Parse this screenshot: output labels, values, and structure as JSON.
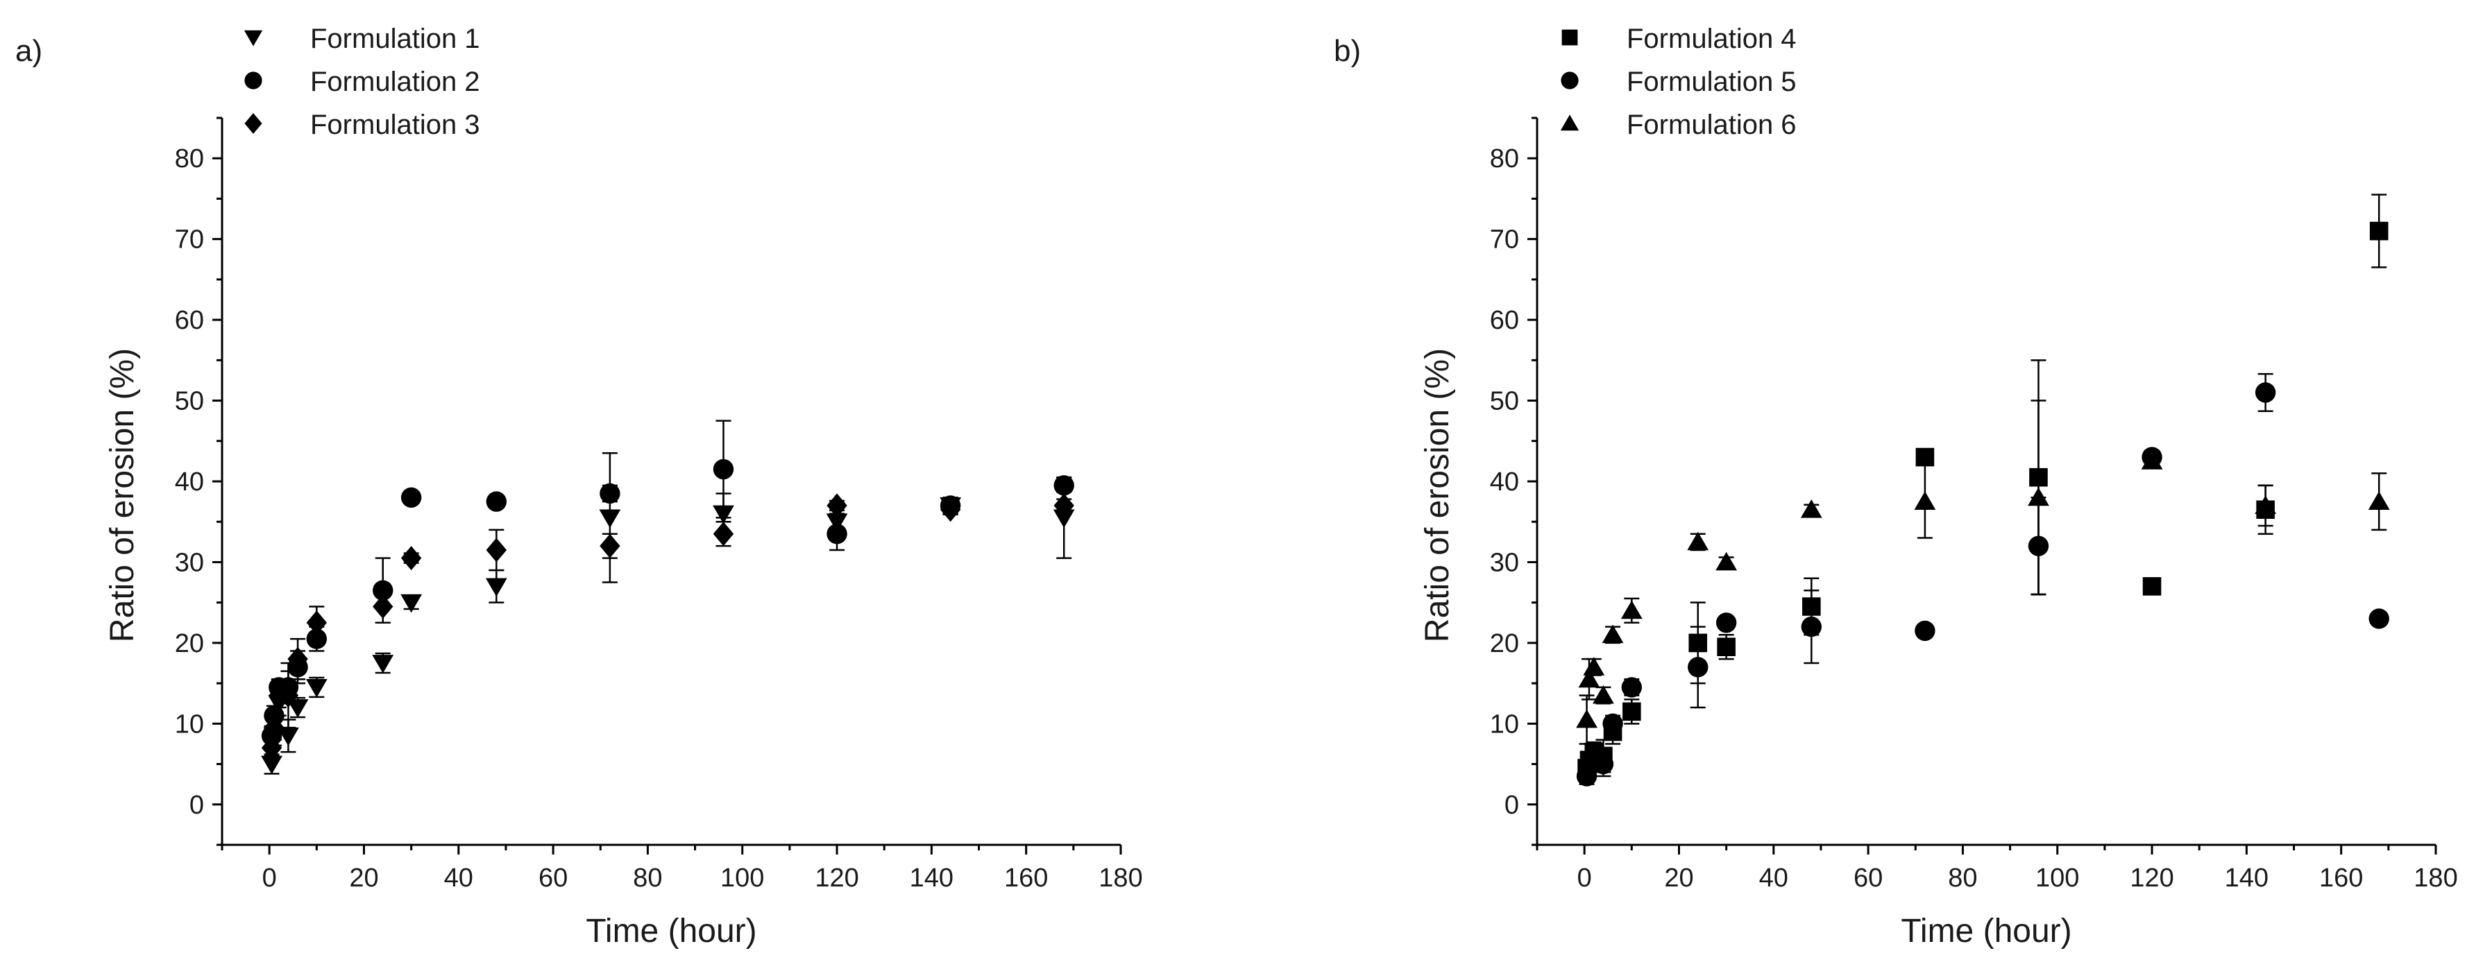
{
  "chart_data": [
    {
      "type": "scatter",
      "panel_label": "a)",
      "xlabel": "Time (hour)",
      "ylabel": "Ratio of erosion (%)",
      "xlim": [
        -10,
        180
      ],
      "ylim": [
        -5,
        85
      ],
      "xticks": [
        0,
        20,
        40,
        60,
        80,
        100,
        120,
        140,
        160,
        180
      ],
      "yticks": [
        0,
        10,
        20,
        30,
        40,
        50,
        60,
        70,
        80
      ],
      "legend_position": "top-left",
      "series": [
        {
          "name": "Formulation 1",
          "marker": "triangle-down",
          "points": [
            {
              "x": 0.5,
              "y": 5,
              "err": 1.2
            },
            {
              "x": 1,
              "y": 8.5,
              "err": 1.2
            },
            {
              "x": 2,
              "y": 12.5,
              "err": 1.5
            },
            {
              "x": 4,
              "y": 8.5,
              "err": 2
            },
            {
              "x": 6,
              "y": 12,
              "err": 1.2
            },
            {
              "x": 10,
              "y": 14.5,
              "err": 1.2
            },
            {
              "x": 24,
              "y": 17.5,
              "err": 1.2
            },
            {
              "x": 30,
              "y": 25,
              "err": 0.8
            },
            {
              "x": 48,
              "y": 27,
              "err": 2
            },
            {
              "x": 72,
              "y": 35.5,
              "err": 8
            },
            {
              "x": 96,
              "y": 36,
              "err": 2.5
            },
            {
              "x": 120,
              "y": 35,
              "err": 1
            },
            {
              "x": 144,
              "y": 37,
              "err": 1
            },
            {
              "x": 168,
              "y": 35.5,
              "err": 5
            }
          ]
        },
        {
          "name": "Formulation 2",
          "marker": "circle",
          "points": [
            {
              "x": 0.5,
              "y": 8.5,
              "err": 1.2
            },
            {
              "x": 1,
              "y": 11,
              "err": 1.2
            },
            {
              "x": 2,
              "y": 14.5,
              "err": 1
            },
            {
              "x": 4,
              "y": 14.5,
              "err": 2
            },
            {
              "x": 6,
              "y": 17,
              "err": 2
            },
            {
              "x": 10,
              "y": 20.5,
              "err": 1.5
            },
            {
              "x": 24,
              "y": 26.5,
              "err": 4
            },
            {
              "x": 30,
              "y": 38,
              "err": 0.6
            },
            {
              "x": 48,
              "y": 37.5,
              "err": 0.6
            },
            {
              "x": 72,
              "y": 38.5,
              "err": 1
            },
            {
              "x": 96,
              "y": 41.5,
              "err": 6
            },
            {
              "x": 120,
              "y": 33.5,
              "err": 2
            },
            {
              "x": 144,
              "y": 37,
              "err": 1
            },
            {
              "x": 168,
              "y": 39.5,
              "err": 0.8
            }
          ]
        },
        {
          "name": "Formulation 3",
          "marker": "diamond",
          "points": [
            {
              "x": 0.5,
              "y": 7,
              "err": 1
            },
            {
              "x": 1,
              "y": 9.5,
              "err": 1.5
            },
            {
              "x": 2,
              "y": 13.5,
              "err": 1.5
            },
            {
              "x": 4,
              "y": 13.5,
              "err": 4
            },
            {
              "x": 6,
              "y": 18,
              "err": 2.5
            },
            {
              "x": 10,
              "y": 22.5,
              "err": 2
            },
            {
              "x": 24,
              "y": 24.5,
              "err": 2
            },
            {
              "x": 30,
              "y": 30.5,
              "err": 0.6
            },
            {
              "x": 48,
              "y": 31.5,
              "err": 2.5
            },
            {
              "x": 72,
              "y": 32,
              "err": 1.5
            },
            {
              "x": 96,
              "y": 33.5,
              "err": 1.5
            },
            {
              "x": 120,
              "y": 37,
              "err": 0.6
            },
            {
              "x": 144,
              "y": 36.5,
              "err": 0.6
            },
            {
              "x": 168,
              "y": 37,
              "err": 0.8
            }
          ]
        }
      ]
    },
    {
      "type": "scatter",
      "panel_label": "b)",
      "xlabel": "Time (hour)",
      "ylabel": "Ratio of erosion (%)",
      "xlim": [
        -10,
        180
      ],
      "ylim": [
        -5,
        85
      ],
      "xticks": [
        0,
        20,
        40,
        60,
        80,
        100,
        120,
        140,
        160,
        180
      ],
      "yticks": [
        0,
        10,
        20,
        30,
        40,
        50,
        60,
        70,
        80
      ],
      "legend_position": "top-left",
      "series": [
        {
          "name": "Formulation 4",
          "marker": "square",
          "points": [
            {
              "x": 0.5,
              "y": 4.5,
              "err": 1
            },
            {
              "x": 1,
              "y": 5.5,
              "err": 1
            },
            {
              "x": 2,
              "y": 6.5,
              "err": 1.2
            },
            {
              "x": 4,
              "y": 6,
              "err": 2
            },
            {
              "x": 6,
              "y": 9,
              "err": 1.5
            },
            {
              "x": 10,
              "y": 11.5,
              "err": 1.5
            },
            {
              "x": 24,
              "y": 20,
              "err": 5
            },
            {
              "x": 30,
              "y": 19.5,
              "err": 1.5
            },
            {
              "x": 48,
              "y": 24.5,
              "err": 3.5
            },
            {
              "x": 72,
              "y": 43,
              "err": 0.8
            },
            {
              "x": 96,
              "y": 40.5,
              "err": 14.5
            },
            {
              "x": 120,
              "y": 27,
              "err": 0.6
            },
            {
              "x": 144,
              "y": 36.5,
              "err": 3
            },
            {
              "x": 168,
              "y": 71,
              "err": 4.5
            }
          ]
        },
        {
          "name": "Formulation 5",
          "marker": "circle",
          "points": [
            {
              "x": 0.5,
              "y": 3.5,
              "err": 1
            },
            {
              "x": 1,
              "y": 5,
              "err": 1
            },
            {
              "x": 2,
              "y": 5.5,
              "err": 1
            },
            {
              "x": 4,
              "y": 5,
              "err": 1.5
            },
            {
              "x": 6,
              "y": 10,
              "err": 1
            },
            {
              "x": 10,
              "y": 14.5,
              "err": 1
            },
            {
              "x": 24,
              "y": 17,
              "err": 5
            },
            {
              "x": 30,
              "y": 22.5,
              "err": 0.6
            },
            {
              "x": 48,
              "y": 22,
              "err": 4.5
            },
            {
              "x": 72,
              "y": 21.5,
              "err": 0.6
            },
            {
              "x": 96,
              "y": 32,
              "err": 6
            },
            {
              "x": 120,
              "y": 43,
              "err": 0.8
            },
            {
              "x": 144,
              "y": 51,
              "err": 2.3
            },
            {
              "x": 168,
              "y": 23,
              "err": 0.6
            }
          ]
        },
        {
          "name": "Formulation 6",
          "marker": "triangle-up",
          "points": [
            {
              "x": 0.5,
              "y": 10.5,
              "err": 3
            },
            {
              "x": 1,
              "y": 15.5,
              "err": 2.5
            },
            {
              "x": 2,
              "y": 17,
              "err": 1
            },
            {
              "x": 4,
              "y": 13.5,
              "err": 1
            },
            {
              "x": 6,
              "y": 21,
              "err": 1
            },
            {
              "x": 10,
              "y": 24,
              "err": 1.5
            },
            {
              "x": 24,
              "y": 32.5,
              "err": 1
            },
            {
              "x": 30,
              "y": 30,
              "err": 0.6
            },
            {
              "x": 48,
              "y": 36.5,
              "err": 0.6
            },
            {
              "x": 72,
              "y": 37.5,
              "err": 4.5
            },
            {
              "x": 96,
              "y": 38,
              "err": 12
            },
            {
              "x": 120,
              "y": 42.5,
              "err": 0.8
            },
            {
              "x": 144,
              "y": 37,
              "err": 2.5
            },
            {
              "x": 168,
              "y": 37.5,
              "err": 3.5
            }
          ]
        }
      ]
    }
  ]
}
